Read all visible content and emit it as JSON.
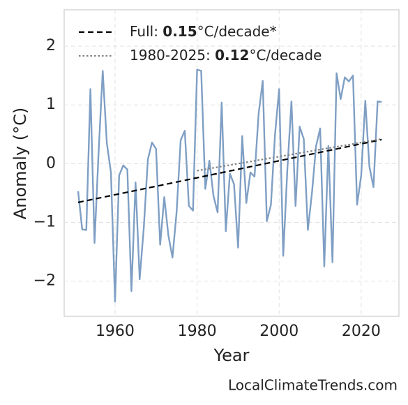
{
  "chart_data": {
    "type": "line",
    "xlabel": "Year",
    "ylabel": "Anomaly (°C)",
    "source": "LocalClimateTrends.com",
    "xlim": [
      1947.6,
      2029.2
    ],
    "ylim": [
      -2.6,
      2.62
    ],
    "xticks": [
      1960,
      1980,
      2000,
      2020
    ],
    "yticks": [
      {
        "value": -2,
        "label": "−2"
      },
      {
        "value": -1,
        "label": "−1"
      },
      0,
      1,
      2
    ],
    "grid": true,
    "legend": "upper left",
    "x": [
      1951,
      1952,
      1953,
      1954,
      1955,
      1956,
      1957,
      1958,
      1959,
      1960,
      1961,
      1962,
      1963,
      1964,
      1965,
      1966,
      1967,
      1968,
      1969,
      1970,
      1971,
      1972,
      1973,
      1974,
      1975,
      1976,
      1977,
      1978,
      1979,
      1980,
      1981,
      1982,
      1983,
      1984,
      1985,
      1986,
      1987,
      1988,
      1989,
      1990,
      1991,
      1992,
      1993,
      1994,
      1995,
      1996,
      1997,
      1998,
      1999,
      2000,
      2001,
      2002,
      2003,
      2004,
      2005,
      2006,
      2007,
      2008,
      2009,
      2010,
      2011,
      2012,
      2013,
      2014,
      2015,
      2016,
      2017,
      2018,
      2019,
      2020,
      2021,
      2022,
      2023,
      2024,
      2025
    ],
    "series": [
      {
        "color": "#7f9fc4",
        "values": [
          -0.47,
          -1.12,
          -1.13,
          1.27,
          -1.35,
          0.2,
          1.58,
          0.35,
          -0.15,
          -2.35,
          -0.2,
          -0.03,
          -0.1,
          -2.17,
          -0.32,
          -1.97,
          -1.1,
          0.07,
          0.36,
          0.25,
          -1.38,
          -0.57,
          -1.22,
          -1.6,
          -0.83,
          0.4,
          0.56,
          -0.72,
          -0.8,
          1.6,
          1.58,
          -0.43,
          0.05,
          -0.55,
          -0.83,
          1.04,
          -1.15,
          -0.17,
          -0.35,
          -1.43,
          0.47,
          -0.67,
          -0.15,
          -0.22,
          0.85,
          1.41,
          -0.98,
          -0.7,
          0.5,
          1.27,
          -1.57,
          -0.1,
          1.06,
          -0.72,
          0.63,
          0.42,
          -1.13,
          -0.5,
          0.3,
          0.6,
          -1.75,
          0.3,
          -1.68,
          1.54,
          1.1,
          1.47,
          1.4,
          1.5,
          -0.7,
          -0.2,
          1.07,
          -0.05,
          -0.4,
          1.06,
          1.05
        ]
      }
    ],
    "trend_lines": [
      {
        "legend_parts": [
          "Full: ",
          "0.15",
          "°C/decade*"
        ],
        "color": "#000000",
        "style": "dashed",
        "x": [
          1951,
          2025
        ],
        "values": [
          -0.66,
          0.41
        ]
      },
      {
        "legend_parts": [
          "1980-2025: ",
          "0.12",
          "°C/decade"
        ],
        "color": "#808080",
        "style": "dotted",
        "x": [
          1980,
          2025
        ],
        "values": [
          -0.12,
          0.42
        ]
      }
    ]
  }
}
